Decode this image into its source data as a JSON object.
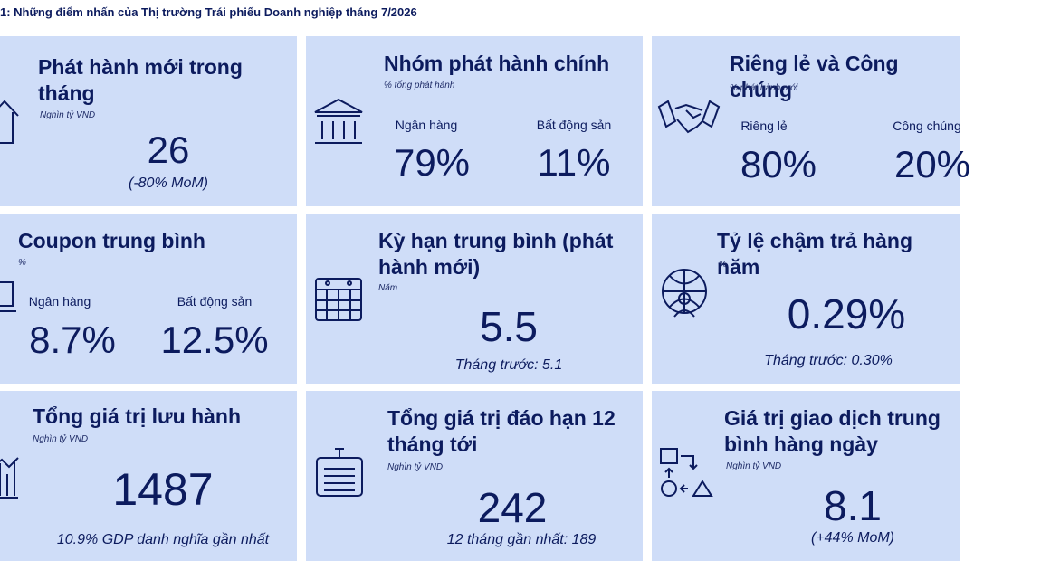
{
  "header": {
    "title": "1: Những điểm nhấn của Thị trường Trái phiếu Doanh nghiệp tháng 7/2026"
  },
  "cards": [
    {
      "title": "Phát hành mới trong tháng",
      "unit": "Nghìn tỷ VND",
      "value": "26",
      "note": "(-80% MoM)"
    },
    {
      "title": "Nhóm phát hành chính",
      "unit": "% tổng phát hành",
      "items": [
        {
          "label": "Ngân hàng",
          "value": "79%"
        },
        {
          "label": "Bất động sản",
          "value": "11%"
        }
      ]
    },
    {
      "title": "Riêng lẻ và Công chúng",
      "unit": "% phát hành mới",
      "items": [
        {
          "label": "Riêng lẻ",
          "value": "80%"
        },
        {
          "label": "Công chúng",
          "value": "20%"
        }
      ]
    },
    {
      "title": "Coupon trung bình",
      "unit": "%",
      "items": [
        {
          "label": "Ngân hàng",
          "value": "8.7%"
        },
        {
          "label": "Bất động sản",
          "value": "12.5%"
        }
      ]
    },
    {
      "title": "Kỳ hạn trung bình (phát hành mới)",
      "unit": "Năm",
      "value": "5.5",
      "note": "Tháng trước: 5.1"
    },
    {
      "title": "Tỷ lệ chậm trả hàng năm",
      "unit": "%",
      "value": "0.29%",
      "note": "Tháng trước: 0.30%"
    },
    {
      "title": "Tổng giá trị lưu hành",
      "unit": "Nghìn tỷ VND",
      "value": "1487",
      "note": "10.9% GDP danh nghĩa gần nhất"
    },
    {
      "title": "Tổng giá trị đáo hạn 12 tháng tới",
      "unit": "Nghìn tỷ VND",
      "value": "242",
      "note": "12 tháng gần nhất: 189"
    },
    {
      "title": "Giá trị giao dịch trung bình hàng ngày",
      "unit": "Nghìn tỷ VND",
      "value": "8.1",
      "note": "(+44% MoM)"
    }
  ]
}
